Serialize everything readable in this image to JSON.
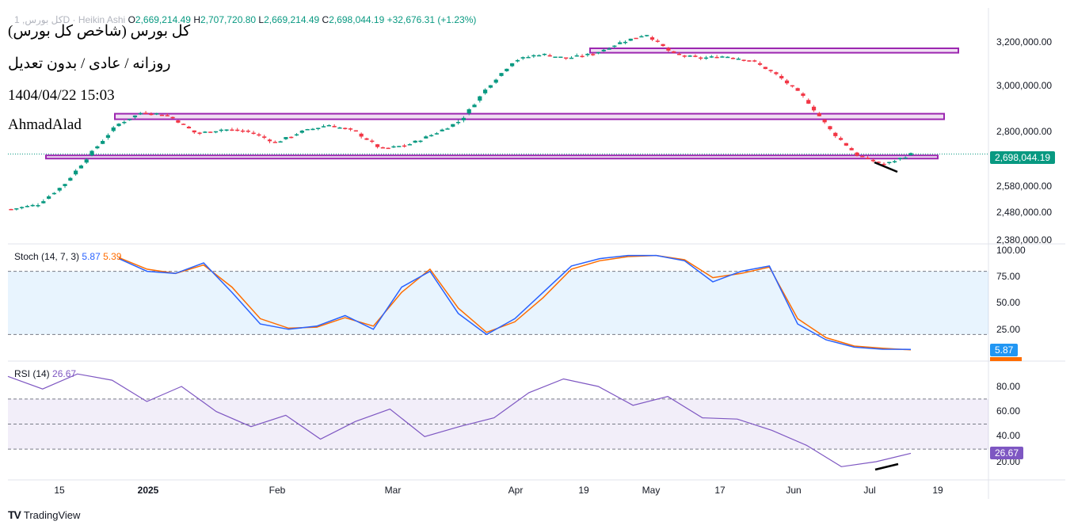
{
  "header": {
    "symbol": "کل بورس, 1D",
    "chart_type": "Heikin Ashi",
    "o_label": "O",
    "o_value": "2,669,214.49",
    "h_label": "H",
    "h_value": "2,707,720.80",
    "l_label": "L",
    "l_value": "2,669,214.49",
    "c_label": "C",
    "c_value": "2,698,044.19",
    "change": "+32,676.31 (+1.23%)"
  },
  "overlay": {
    "title": "کل بورس (شاخص کل بورس)",
    "subtitle": "روزانه / عادی / بدون تعدیل",
    "datetime": "1404/04/22 15:03",
    "author": "AhmadAlad"
  },
  "price_axis": {
    "ticks": [
      "3,200,000.00",
      "3,000,000.00",
      "2,800,000.00",
      "2,580,000.00",
      "2,480,000.00",
      "2,380,000.00"
    ],
    "last_price": "2,698,044.19"
  },
  "stoch": {
    "label": "Stoch (14, 7, 3)",
    "k_value": "5.87",
    "d_value": "5.39",
    "ticks": [
      "100.00",
      "75.00",
      "50.00",
      "25.00"
    ],
    "k_tag": "5.87"
  },
  "rsi": {
    "label": "RSI (14)",
    "value": "26.67",
    "ticks": [
      "80.00",
      "60.00",
      "40.00",
      "20.00"
    ],
    "tag": "26.67"
  },
  "time_axis": {
    "labels": [
      "15",
      "2025",
      "Feb",
      "Mar",
      "Apr",
      "19",
      "May",
      "17",
      "Jun",
      "Jul",
      "19"
    ]
  },
  "branding": {
    "name": "TradingView"
  },
  "colors": {
    "up": "#089981",
    "down": "#f23645",
    "stoch_k": "#2962ff",
    "stoch_d": "#ff6d00",
    "rsi": "#7e57c2",
    "zone": "#9c27b0"
  },
  "chart_data": [
    {
      "type": "candlestick",
      "title": "کل بورس (شاخص کل بورس)",
      "style": "Heikin Ashi",
      "ylim": [
        2380000,
        3250000
      ],
      "x": [
        "2024-12-08",
        "2024-12-15",
        "2025-01-01",
        "2025-02-01",
        "2025-03-01",
        "2025-04-01",
        "2025-04-19",
        "2025-05-01",
        "2025-05-17",
        "2025-06-01",
        "2025-07-01",
        "2025-07-19"
      ],
      "close_path": [
        2450000,
        2470000,
        2560000,
        2700000,
        2830000,
        2890000,
        2870000,
        2790000,
        2810000,
        2800000,
        2750000,
        2800000,
        2830000,
        2800000,
        2720000,
        2740000,
        2790000,
        2850000,
        3000000,
        3120000,
        3150000,
        3130000,
        3150000,
        3200000,
        3240000,
        3150000,
        3130000,
        3140000,
        3120000,
        3050000,
        2950000,
        2800000,
        2690000,
        2650000,
        2698044
      ],
      "zones": [
        [
          3155000,
          3175000
        ],
        [
          2855000,
          2880000
        ],
        [
          2680000,
          2692000
        ]
      ],
      "last": 2698044.19
    },
    {
      "type": "line",
      "title": "Stoch (14, 7, 3)",
      "ylim": [
        0,
        100
      ],
      "bands": [
        20,
        80
      ],
      "series": [
        {
          "name": "K",
          "values": [
            92,
            80,
            78,
            88,
            60,
            30,
            25,
            28,
            38,
            25,
            65,
            80,
            40,
            20,
            35,
            60,
            85,
            92,
            95,
            95,
            90,
            70,
            80,
            85,
            30,
            15,
            8,
            6,
            5.87
          ]
        },
        {
          "name": "D",
          "values": [
            93,
            82,
            78,
            86,
            65,
            35,
            26,
            27,
            36,
            28,
            60,
            82,
            45,
            22,
            32,
            55,
            82,
            90,
            94,
            95,
            91,
            74,
            78,
            84,
            35,
            17,
            9,
            7,
            5.39
          ]
        }
      ]
    },
    {
      "type": "line",
      "title": "RSI (14)",
      "ylim": [
        10,
        90
      ],
      "bands": [
        30,
        50,
        70
      ],
      "series": [
        {
          "name": "RSI",
          "values": [
            88,
            78,
            90,
            85,
            68,
            80,
            60,
            48,
            57,
            38,
            52,
            62,
            40,
            48,
            55,
            75,
            86,
            80,
            65,
            72,
            55,
            54,
            45,
            33,
            16,
            20,
            26.67
          ]
        }
      ]
    }
  ]
}
